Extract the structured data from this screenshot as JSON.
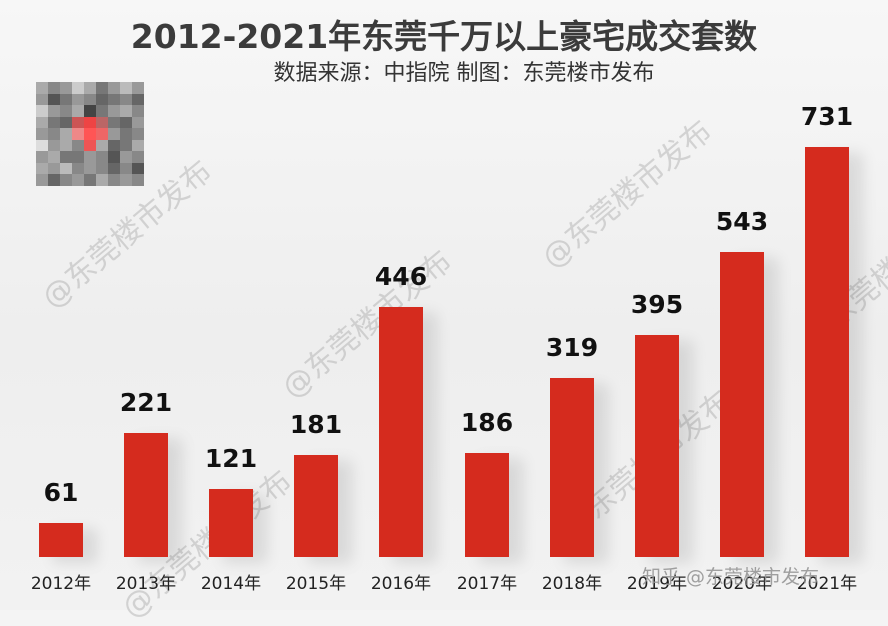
{
  "title": "2012-2021年东莞千万以上豪宅成交套数",
  "subtitle": "数据来源：中指院 制图：东莞楼市发布",
  "watermark": "@东莞楼市发布",
  "footer_watermark": "知乎 @东莞楼市发布",
  "colors": {
    "bar": "#d52b1e",
    "title": "#3b3b3b",
    "background": "#f4f4f4"
  },
  "chart_data": {
    "type": "bar",
    "title": "2012-2021年东莞千万以上豪宅成交套数",
    "subtitle": "数据来源：中指院 制图：东莞楼市发布",
    "xlabel": "",
    "ylabel": "",
    "categories": [
      "2012年",
      "2013年",
      "2014年",
      "2015年",
      "2016年",
      "2017年",
      "2018年",
      "2019年",
      "2020年",
      "2021年"
    ],
    "values": [
      61,
      221,
      121,
      181,
      446,
      186,
      319,
      395,
      543,
      731
    ],
    "data_labels": [
      "61",
      "221",
      "121",
      "181",
      "446",
      "186",
      "319",
      "395",
      "543",
      "731"
    ],
    "grid": false,
    "legend": "none",
    "ylim": [
      0,
      800
    ]
  },
  "bars": [
    {
      "label": "2012年",
      "value": "61"
    },
    {
      "label": "2013年",
      "value": "221"
    },
    {
      "label": "2014年",
      "value": "121"
    },
    {
      "label": "2015年",
      "value": "181"
    },
    {
      "label": "2016年",
      "value": "446"
    },
    {
      "label": "2017年",
      "value": "186"
    },
    {
      "label": "2018年",
      "value": "319"
    },
    {
      "label": "2019年",
      "value": "395"
    },
    {
      "label": "2020年",
      "value": "543"
    },
    {
      "label": "2021年",
      "value": "731"
    }
  ]
}
